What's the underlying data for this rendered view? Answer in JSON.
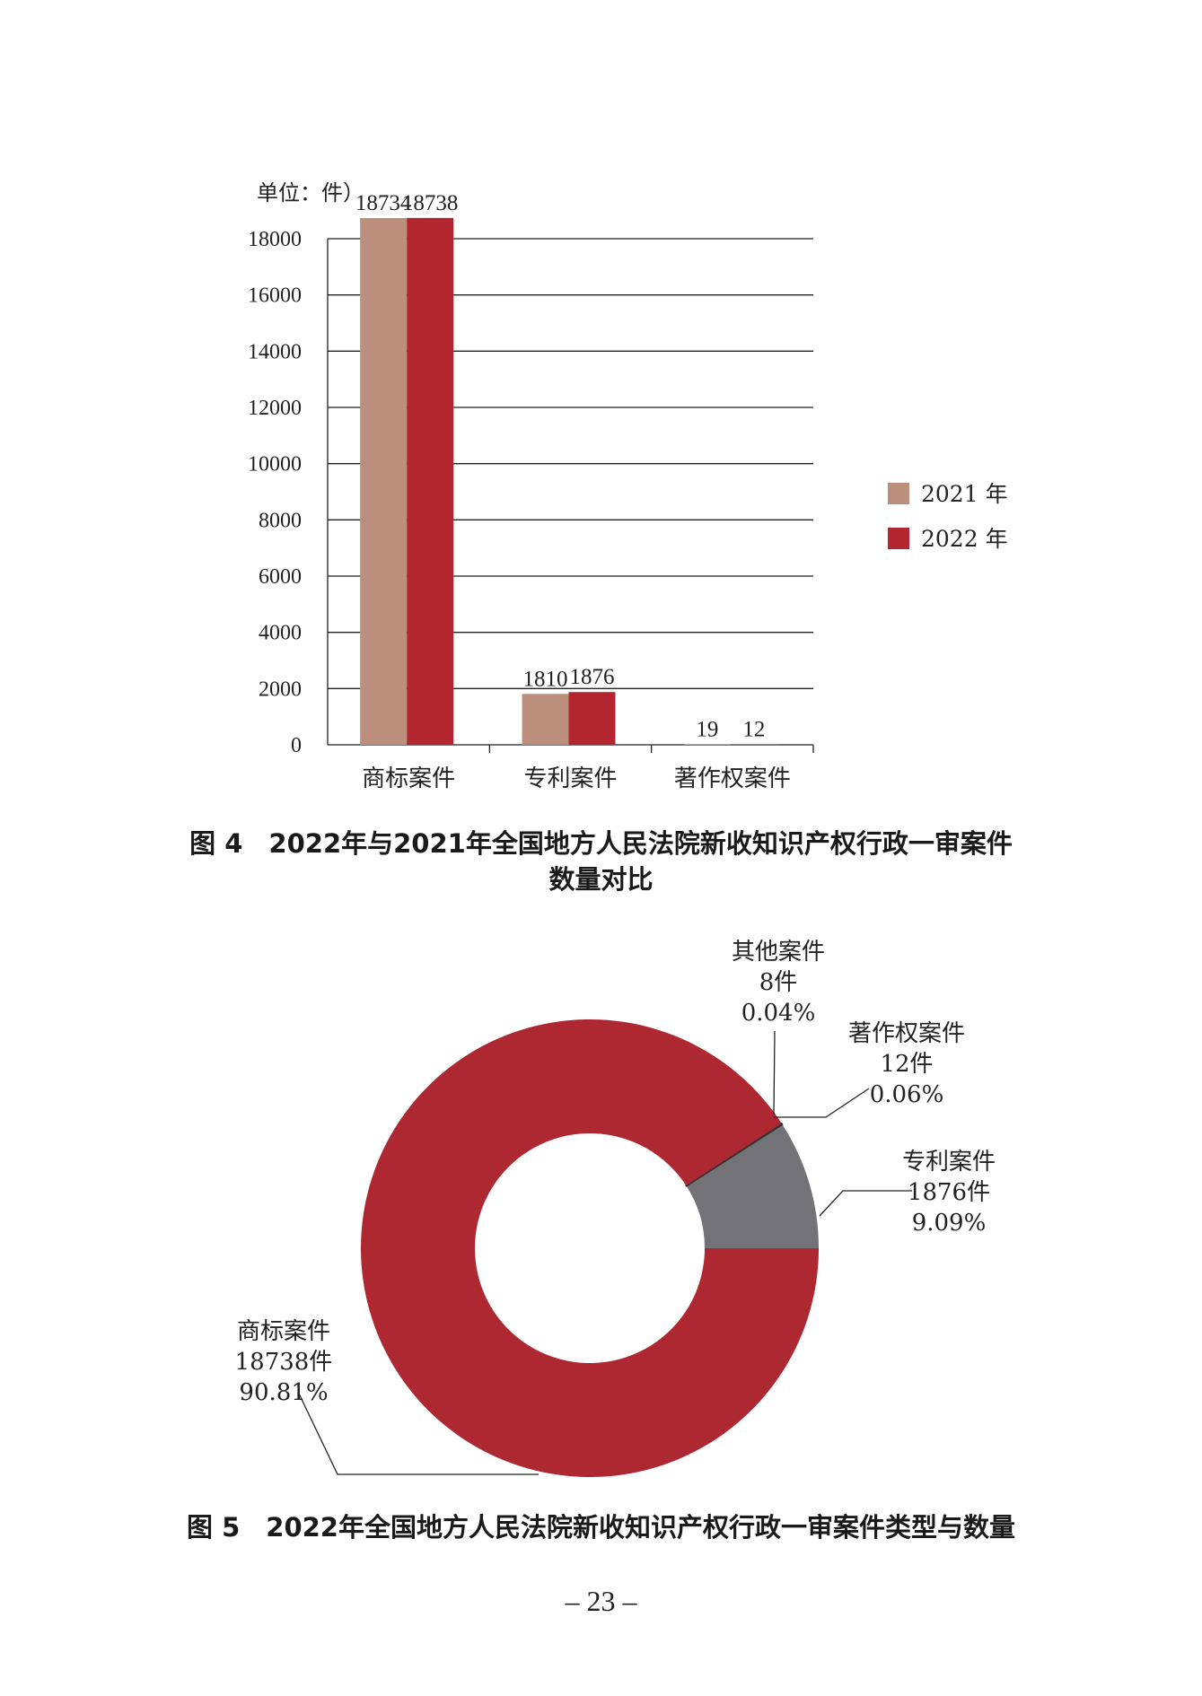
{
  "chart_data": [
    {
      "type": "bar",
      "unit_label": "单位：件）",
      "categories": [
        "商标案件",
        "专利案件",
        "著作权案件"
      ],
      "series": [
        {
          "name": "2021 年",
          "values": [
            18734,
            1810,
            19
          ],
          "color": "#bc8f7d"
        },
        {
          "name": "2022 年",
          "values": [
            18738,
            1876,
            12
          ],
          "color": "#b3262f"
        }
      ],
      "ylim": [
        0,
        18000
      ],
      "yticks": [
        0,
        2000,
        4000,
        6000,
        8000,
        10000,
        12000,
        14000,
        16000,
        18000
      ],
      "grid": true,
      "legend": "right"
    },
    {
      "type": "pie",
      "donut": true,
      "slices": [
        {
          "label": "商标案件",
          "count": "18738件",
          "percent": "90.81%",
          "value": 90.81,
          "color": "#ad2830"
        },
        {
          "label": "专利案件",
          "count": "1876件",
          "percent": "9.09%",
          "value": 9.09,
          "color": "#737277"
        },
        {
          "label": "著作权案件",
          "count": "12件",
          "percent": "0.06%",
          "value": 0.06,
          "color": "#333333"
        },
        {
          "label": "其他案件",
          "count": "8件",
          "percent": "0.04%",
          "value": 0.04,
          "color": "#333333"
        }
      ]
    }
  ],
  "captions": {
    "fig4_line1": "图 4　2022年与2021年全国地方人民法院新收知识产权行政一审案件",
    "fig4_line2": "数量对比",
    "fig5": "图 5　2022年全国地方人民法院新收知识产权行政一审案件类型与数量"
  },
  "page_number": "– 23 –"
}
